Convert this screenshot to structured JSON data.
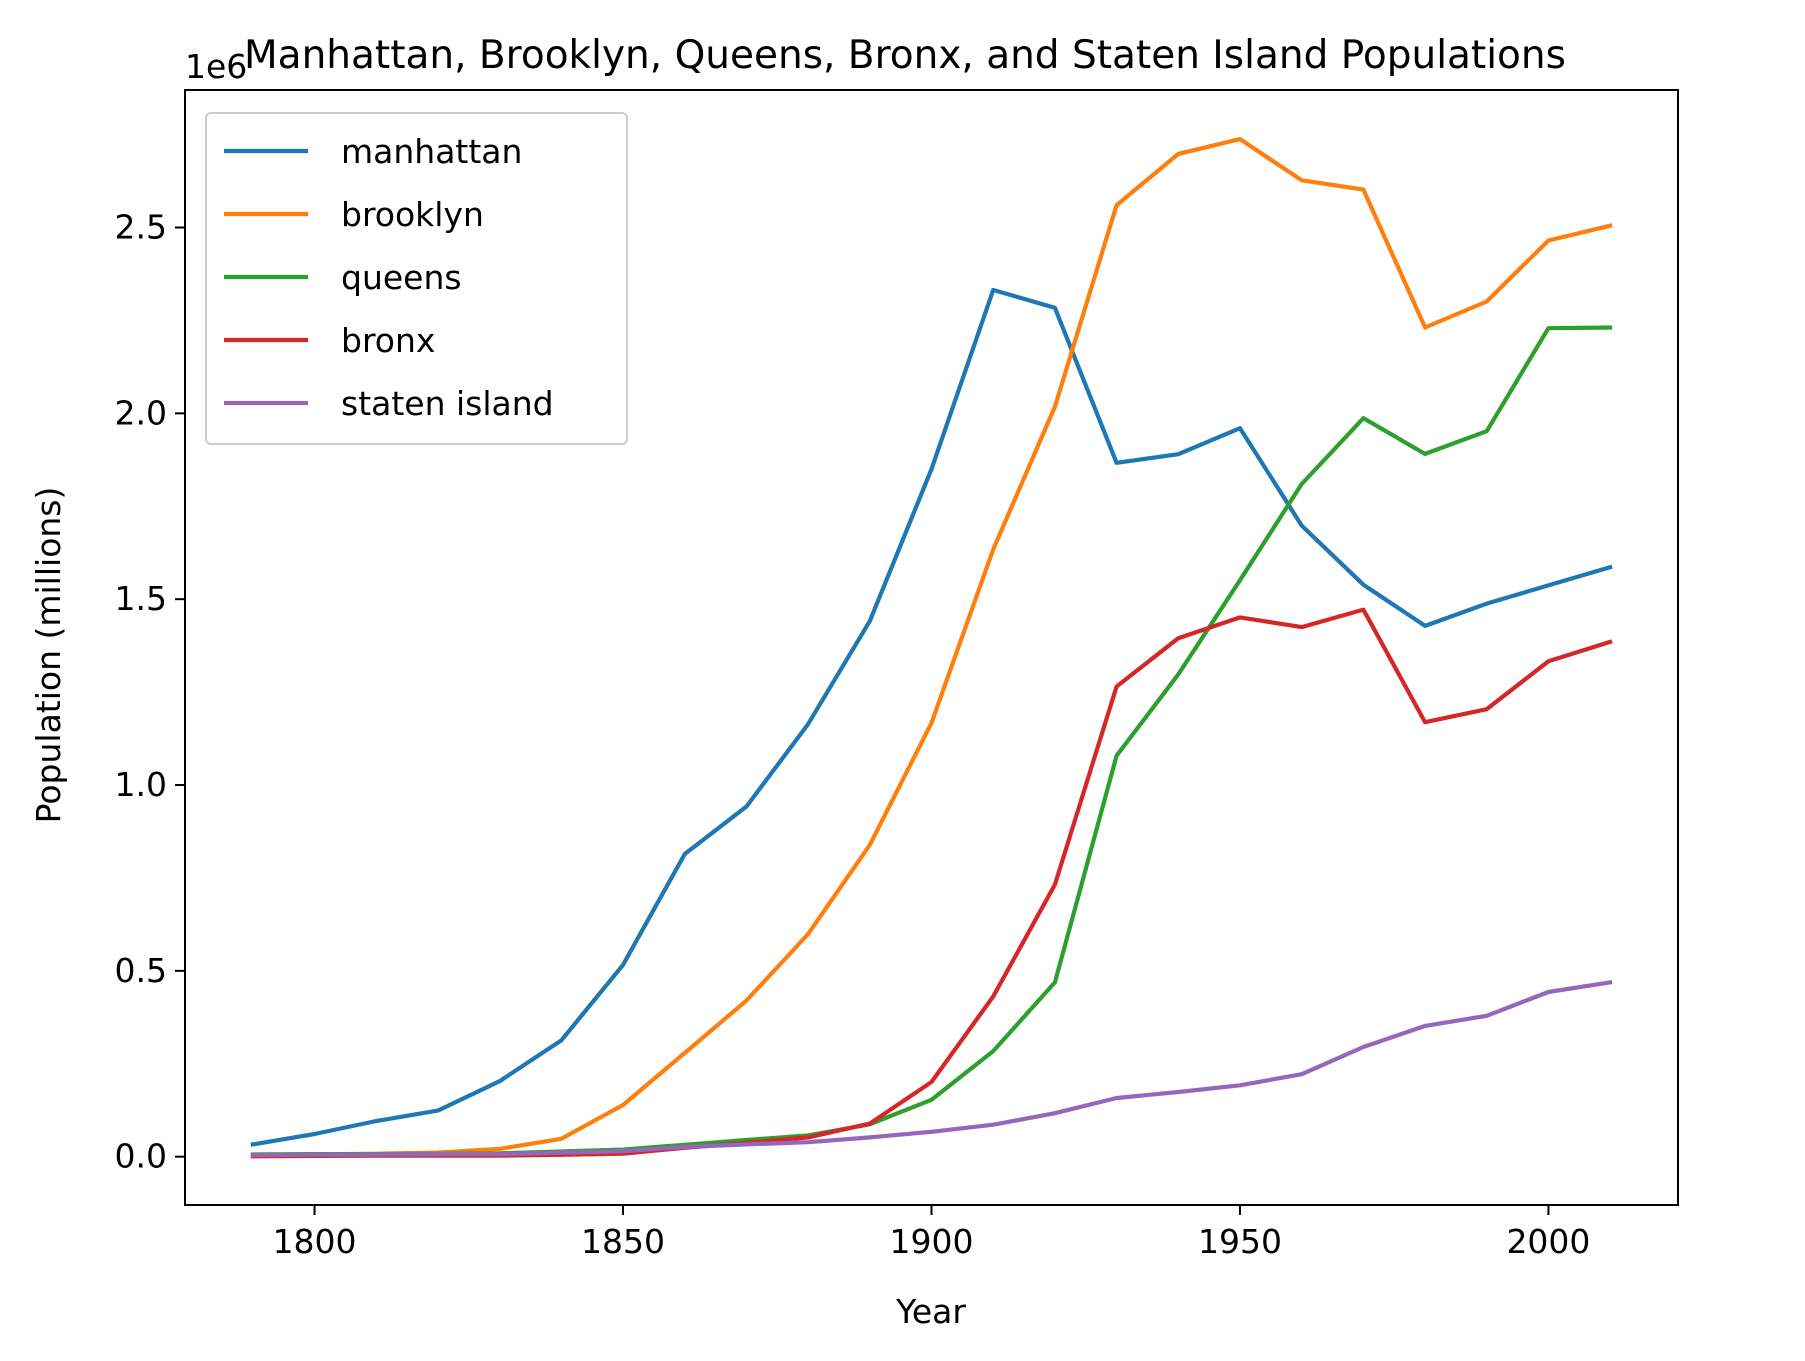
{
  "chart_data": {
    "type": "line",
    "title": "Manhattan, Brooklyn, Queens, Bronx, and Staten Island Populations",
    "xlabel": "Year",
    "ylabel": "Population (millions)",
    "y_offset_label": "1e6",
    "xlim": [
      1779,
      2021
    ],
    "ylim": [
      -0.13,
      2.87
    ],
    "x_ticks": [
      1800,
      1850,
      1900,
      1950,
      2000
    ],
    "x_tick_labels": [
      "1800",
      "1850",
      "1900",
      "1950",
      "2000"
    ],
    "y_ticks": [
      0.0,
      0.5,
      1.0,
      1.5,
      2.0,
      2.5
    ],
    "y_tick_labels": [
      "0.0",
      "0.5",
      "1.0",
      "1.5",
      "2.0",
      "2.5"
    ],
    "grid": false,
    "legend_position": "upper-left",
    "x": [
      1790,
      1800,
      1810,
      1820,
      1830,
      1840,
      1850,
      1860,
      1870,
      1880,
      1890,
      1900,
      1910,
      1920,
      1930,
      1940,
      1950,
      1960,
      1970,
      1980,
      1990,
      2000,
      2010
    ],
    "series": [
      {
        "name": "manhattan",
        "color": "#1f77b4",
        "values": [
          0.033,
          0.061,
          0.096,
          0.124,
          0.203,
          0.313,
          0.516,
          0.814,
          0.942,
          1.164,
          1.441,
          1.85,
          2.332,
          2.284,
          1.867,
          1.89,
          1.96,
          1.698,
          1.539,
          1.428,
          1.488,
          1.537,
          1.586
        ]
      },
      {
        "name": "brooklyn",
        "color": "#ff7f0e",
        "values": [
          0.005,
          0.006,
          0.008,
          0.011,
          0.021,
          0.048,
          0.139,
          0.279,
          0.42,
          0.599,
          0.839,
          1.167,
          1.634,
          2.018,
          2.56,
          2.698,
          2.738,
          2.627,
          2.602,
          2.231,
          2.301,
          2.465,
          2.505
        ]
      },
      {
        "name": "queens",
        "color": "#2ca02c",
        "values": [
          0.006,
          0.007,
          0.007,
          0.008,
          0.009,
          0.014,
          0.019,
          0.032,
          0.045,
          0.057,
          0.087,
          0.153,
          0.284,
          0.469,
          1.079,
          1.298,
          1.551,
          1.81,
          1.987,
          1.891,
          1.952,
          2.229,
          2.231
        ]
      },
      {
        "name": "bronx",
        "color": "#d62728",
        "values": [
          0.001,
          0.002,
          0.003,
          0.003,
          0.003,
          0.005,
          0.008,
          0.024,
          0.037,
          0.052,
          0.089,
          0.201,
          0.431,
          0.732,
          1.265,
          1.395,
          1.451,
          1.425,
          1.472,
          1.169,
          1.204,
          1.333,
          1.385
        ]
      },
      {
        "name": "staten island",
        "color": "#9467bd",
        "values": [
          0.004,
          0.005,
          0.006,
          0.007,
          0.007,
          0.011,
          0.015,
          0.026,
          0.033,
          0.039,
          0.052,
          0.067,
          0.086,
          0.117,
          0.158,
          0.174,
          0.192,
          0.222,
          0.295,
          0.352,
          0.379,
          0.443,
          0.469
        ]
      }
    ]
  }
}
